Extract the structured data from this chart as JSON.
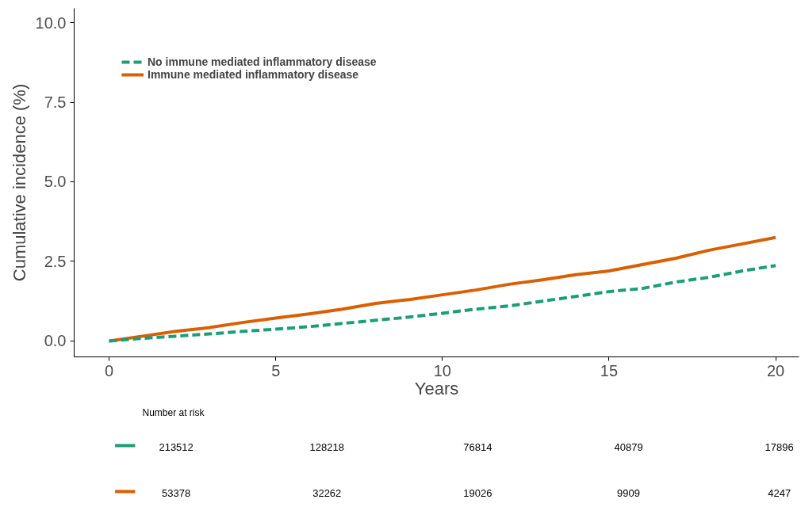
{
  "chart_data": {
    "type": "line",
    "xlabel": "Years",
    "ylabel": "Cumulative incidence (%)",
    "x": [
      0,
      1,
      2,
      3,
      4,
      5,
      6,
      7,
      8,
      9,
      10,
      11,
      12,
      13,
      14,
      15,
      16,
      17,
      18,
      19,
      20
    ],
    "series": [
      {
        "name": "No immune mediated inflammatory disease",
        "color": "#1b9e77",
        "line_style": "dashed",
        "values": [
          0,
          0.08,
          0.15,
          0.22,
          0.3,
          0.37,
          0.45,
          0.55,
          0.65,
          0.75,
          0.87,
          1.0,
          1.1,
          1.25,
          1.4,
          1.55,
          1.65,
          1.85,
          2.0,
          2.2,
          2.37
        ]
      },
      {
        "name": "Immune mediated inflammatory disease",
        "color": "#d95f02",
        "line_style": "solid",
        "values": [
          0,
          0.15,
          0.3,
          0.42,
          0.58,
          0.72,
          0.85,
          1.0,
          1.18,
          1.3,
          1.45,
          1.6,
          1.78,
          1.92,
          2.08,
          2.2,
          2.4,
          2.6,
          2.85,
          3.05,
          3.25
        ]
      }
    ],
    "xlim": [
      -1.05,
      20.7
    ],
    "ylim": [
      -0.5,
      10.45
    ],
    "xticks": [
      0,
      5,
      10,
      15,
      20
    ],
    "yticks": [
      {
        "value": 0,
        "label": "0.0"
      },
      {
        "value": 2.5,
        "label": "2.5"
      },
      {
        "value": 5,
        "label": "5.0"
      },
      {
        "value": 7.5,
        "label": "7.5"
      },
      {
        "value": 10,
        "label": "10.0"
      }
    ],
    "grid": false,
    "legend": "top left",
    "marker": "none",
    "annotations": [
      "Number at risk",
      "213512",
      "128218",
      "76814",
      "40879",
      "17896",
      "53378",
      "32262",
      "19026",
      "9909",
      "4247"
    ]
  }
}
